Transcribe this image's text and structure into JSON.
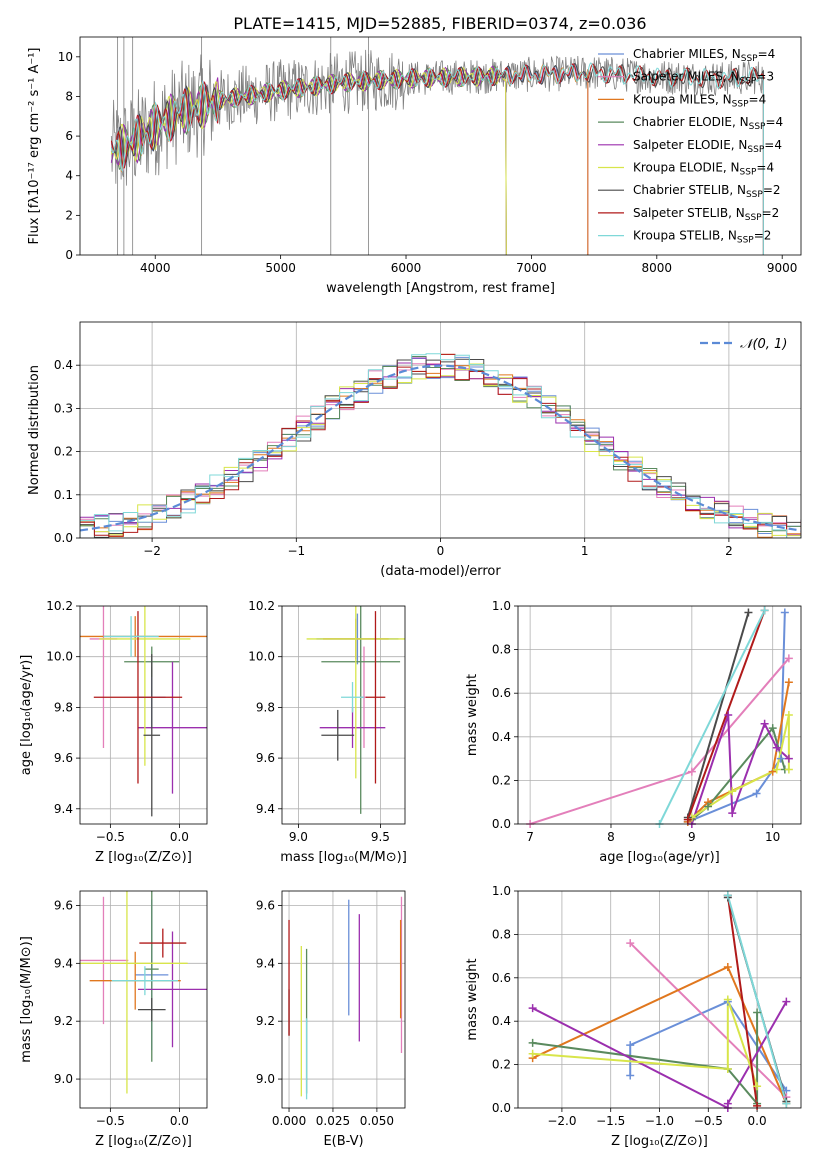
{
  "figure": {
    "title": "PLATE=1415, MJD=52885, FIBERID=0374, z=0.036"
  },
  "model_colors": {
    "Chabrier MILES": "#6a8fd8",
    "Salpeter MILES": "#e37fba",
    "Kroupa MILES": "#e0771e",
    "Chabrier ELODIE": "#5a8a5e",
    "Salpeter ELODIE": "#9b2fae",
    "Kroupa ELODIE": "#d8e54a",
    "Chabrier STELIB": "#4a4a4a",
    "Salpeter STELIB": "#b01a1a",
    "Kroupa STELIB": "#7fd8d8",
    "data": "#808080"
  },
  "chart_data": [
    {
      "id": "spectrum",
      "type": "line",
      "title": "",
      "xlabel": "wavelength [Angstrom, rest frame]",
      "ylabel": "Flux [fλ10⁻¹⁷ erg cm⁻² s⁻¹ A⁻¹]",
      "xlim": [
        3400,
        9150
      ],
      "ylim": [
        0,
        11
      ],
      "xticks": [
        4000,
        5000,
        6000,
        7000,
        8000,
        9000
      ],
      "yticks": [
        0,
        2,
        4,
        6,
        8,
        10
      ],
      "legend_position": "upper-right",
      "continuum_points": {
        "x": [
          3650,
          3800,
          4000,
          4200,
          4500,
          5000,
          5500,
          6000,
          6500,
          7000,
          7500,
          8000,
          8500,
          8850
        ],
        "y": [
          5.2,
          5.6,
          6.5,
          7.2,
          7.8,
          8.3,
          8.7,
          8.9,
          9.0,
          9.1,
          9.2,
          9.0,
          8.9,
          9.0
        ]
      },
      "series": [
        {
          "name": "Chabrier MILES, N_SSP=4",
          "x_end": 7450
        },
        {
          "name": "Salpeter MILES, N_SSP=3",
          "x_end": 7450
        },
        {
          "name": "Kroupa MILES, N_SSP=4",
          "x_end": 7450
        },
        {
          "name": "Chabrier ELODIE, N_SSP=4",
          "x_end": 6800
        },
        {
          "name": "Salpeter ELODIE, N_SSP=4",
          "x_end": 6800
        },
        {
          "name": "Kroupa ELODIE, N_SSP=4",
          "x_end": 6800
        },
        {
          "name": "Chabrier STELIB, N_SSP=2",
          "x_end": 8850
        },
        {
          "name": "Salpeter STELIB, N_SSP=2",
          "x_end": 8850
        },
        {
          "name": "Kroupa STELIB, N_SSP=2",
          "x_end": 8850
        }
      ],
      "legend_entries": [
        {
          "pre": "Chabrier MILES, N",
          "sub": "SSP",
          "post": "=4"
        },
        {
          "pre": "Salpeter MILES, N",
          "sub": "SSP",
          "post": "=3"
        },
        {
          "pre": "Kroupa MILES, N",
          "sub": "SSP",
          "post": "=4"
        },
        {
          "pre": "Chabrier ELODIE, N",
          "sub": "SSP",
          "post": "=4"
        },
        {
          "pre": "Salpeter ELODIE, N",
          "sub": "SSP",
          "post": "=4"
        },
        {
          "pre": "Kroupa ELODIE, N",
          "sub": "SSP",
          "post": "=4"
        },
        {
          "pre": "Chabrier STELIB, N",
          "sub": "SSP",
          "post": "=2"
        },
        {
          "pre": "Salpeter STELIB, N",
          "sub": "SSP",
          "post": "=2"
        },
        {
          "pre": "Kroupa STELIB, N",
          "sub": "SSP",
          "post": "=2"
        }
      ]
    },
    {
      "id": "residuals",
      "type": "line",
      "xlabel": "(data-model)/error",
      "ylabel": "Normed distribution",
      "xlim": [
        -2.5,
        2.5
      ],
      "ylim": [
        0,
        0.5
      ],
      "xticks": [
        -2,
        -1,
        0,
        1,
        2
      ],
      "yticks": [
        0.0,
        0.1,
        0.2,
        0.3,
        0.4
      ],
      "grid": true,
      "legend_position": "upper-right",
      "gaussian_label": "𝒩(0, 1)",
      "histogram_bin_width": 0.1
    },
    {
      "id": "age_vs_Z",
      "type": "scatter",
      "xlabel": "Z [log₁₀(Z/Z⊙)]",
      "ylabel": "age  [log₁₀(age/yr)]",
      "xlim": [
        -0.72,
        0.2
      ],
      "ylim": [
        9.34,
        10.2
      ],
      "xticks": [
        -0.5,
        0.0
      ],
      "yticks": [
        9.4,
        9.6,
        9.8,
        10.0,
        10.2
      ],
      "grid": true,
      "points": [
        {
          "model": "Chabrier MILES",
          "x": -0.2,
          "y": 9.84,
          "xerr": 0.1,
          "yerr": 0.12
        },
        {
          "model": "Salpeter MILES",
          "x": -0.55,
          "y": 10.07,
          "xerr": 0.1,
          "yerr": 0.43
        },
        {
          "model": "Kroupa MILES",
          "x": -0.32,
          "y": 10.08,
          "xerr": 0.52,
          "yerr": 0.08
        },
        {
          "model": "Chabrier ELODIE",
          "x": -0.2,
          "y": 9.98,
          "xerr": 0.2,
          "yerr": 0.06
        },
        {
          "model": "Salpeter ELODIE",
          "x": -0.05,
          "y": 9.72,
          "xerr": 0.25,
          "yerr": 0.26
        },
        {
          "model": "Kroupa ELODIE",
          "x": -0.25,
          "y": 10.07,
          "xerr": 0.33,
          "yerr": 0.5
        },
        {
          "model": "Chabrier STELIB",
          "x": -0.2,
          "y": 9.69,
          "xerr": 0.06,
          "yerr": 0.32
        },
        {
          "model": "Salpeter STELIB",
          "x": -0.3,
          "y": 9.84,
          "xerr": 0.32,
          "yerr": 0.34
        },
        {
          "model": "Kroupa STELIB",
          "x": -0.35,
          "y": 10.08,
          "xerr": 0.2,
          "yerr": 0.08
        }
      ]
    },
    {
      "id": "age_vs_mass",
      "type": "scatter",
      "xlabel": "mass [log₁₀(M/M⊙)]",
      "ylabel": "",
      "xlim": [
        8.9,
        9.65
      ],
      "ylim": [
        9.34,
        10.2
      ],
      "xticks": [
        9.0,
        9.5
      ],
      "yticks": [
        9.4,
        9.6,
        9.8,
        10.0,
        10.2
      ],
      "grid": true,
      "points": [
        {
          "model": "Chabrier MILES",
          "x": 9.36,
          "y": 10.07,
          "xerr": 0.25,
          "yerr": 0.1
        },
        {
          "model": "Salpeter MILES",
          "x": 9.4,
          "y": 9.84,
          "xerr": 0.02,
          "yerr": 0.2
        },
        {
          "model": "Kroupa MILES",
          "x": 9.35,
          "y": 10.07,
          "xerr": 0.2,
          "yerr": 0.08
        },
        {
          "model": "Chabrier ELODIE",
          "x": 9.38,
          "y": 9.98,
          "xerr": 0.24,
          "yerr": 0.6
        },
        {
          "model": "Salpeter ELODIE",
          "x": 9.33,
          "y": 9.72,
          "xerr": 0.2,
          "yerr": 0.08
        },
        {
          "model": "Kroupa ELODIE",
          "x": 9.35,
          "y": 10.07,
          "xerr": 0.3,
          "yerr": 0.55
        },
        {
          "model": "Chabrier STELIB",
          "x": 9.24,
          "y": 9.69,
          "xerr": 0.1,
          "yerr": 0.1
        },
        {
          "model": "Salpeter STELIB",
          "x": 9.47,
          "y": 9.84,
          "xerr": 0.06,
          "yerr": 0.34
        },
        {
          "model": "Kroupa STELIB",
          "x": 9.33,
          "y": 9.84,
          "xerr": 0.07,
          "yerr": 0.06
        }
      ]
    },
    {
      "id": "weight_vs_age",
      "type": "line",
      "xlabel": "age  [log₁₀(age/yr)]",
      "ylabel": "mass weight",
      "xlim": [
        6.85,
        10.35
      ],
      "ylim": [
        0,
        1
      ],
      "xticks": [
        7,
        8,
        9,
        10
      ],
      "yticks": [
        0.0,
        0.2,
        0.4,
        0.6,
        0.8,
        1.0
      ],
      "grid": true,
      "series": [
        {
          "model": "Chabrier MILES",
          "x": [
            8.95,
            9.8,
            10.1,
            10.15
          ],
          "y": [
            0.01,
            0.14,
            0.3,
            0.97
          ]
        },
        {
          "model": "Salpeter MILES",
          "x": [
            7.0,
            9.0,
            10.2
          ],
          "y": [
            0.0,
            0.24,
            0.76
          ]
        },
        {
          "model": "Kroupa MILES",
          "x": [
            8.95,
            9.2,
            10.0,
            10.2
          ],
          "y": [
            0.01,
            0.1,
            0.24,
            0.65
          ]
        },
        {
          "model": "Chabrier ELODIE",
          "x": [
            9.0,
            9.2,
            10.0,
            10.15
          ],
          "y": [
            0.02,
            0.08,
            0.44,
            0.25
          ]
        },
        {
          "model": "Salpeter ELODIE",
          "x": [
            9.0,
            9.45,
            9.5,
            9.9,
            10.05,
            10.2
          ],
          "y": [
            0.0,
            0.5,
            0.05,
            0.46,
            0.35,
            0.3
          ]
        },
        {
          "model": "Kroupa ELODIE",
          "x": [
            9.0,
            9.5,
            10.05,
            10.2,
            10.2
          ],
          "y": [
            0.03,
            0.15,
            0.25,
            0.5,
            0.25
          ]
        },
        {
          "model": "Chabrier STELIB",
          "x": [
            8.95,
            9.7
          ],
          "y": [
            0.03,
            0.97
          ]
        },
        {
          "model": "Salpeter STELIB",
          "x": [
            8.95,
            9.9
          ],
          "y": [
            0.02,
            0.98
          ]
        },
        {
          "model": "Kroupa STELIB",
          "x": [
            8.6,
            9.9
          ],
          "y": [
            0.0,
            0.98
          ]
        }
      ]
    },
    {
      "id": "mass_vs_Z",
      "type": "scatter",
      "xlabel": "Z [log₁₀(Z/Z⊙)]",
      "ylabel": "mass [log₁₀(M/M⊙)]",
      "xlim": [
        -0.72,
        0.2
      ],
      "ylim": [
        8.9,
        9.65
      ],
      "xticks": [
        -0.5,
        0.0
      ],
      "yticks": [
        9.0,
        9.2,
        9.4,
        9.6
      ],
      "grid": true,
      "points": [
        {
          "model": "Chabrier MILES",
          "x": -0.2,
          "y": 9.36,
          "xerr": 0.12,
          "yerr": 0.26
        },
        {
          "model": "Salpeter MILES",
          "x": -0.55,
          "y": 9.41,
          "xerr": 0.18,
          "yerr": 0.22
        },
        {
          "model": "Kroupa MILES",
          "x": -0.32,
          "y": 9.34,
          "xerr": 0.33,
          "yerr": 0.1
        },
        {
          "model": "Chabrier ELODIE",
          "x": -0.2,
          "y": 9.38,
          "xerr": 0.05,
          "yerr": 0.32
        },
        {
          "model": "Salpeter ELODIE",
          "x": -0.05,
          "y": 9.31,
          "xerr": 0.25,
          "yerr": 0.2
        },
        {
          "model": "Kroupa ELODIE",
          "x": -0.38,
          "y": 9.4,
          "xerr": 0.44,
          "yerr": 0.45
        },
        {
          "model": "Chabrier STELIB",
          "x": -0.2,
          "y": 9.24,
          "xerr": 0.1,
          "yerr": 0.04
        },
        {
          "model": "Salpeter STELIB",
          "x": -0.12,
          "y": 9.47,
          "xerr": 0.17,
          "yerr": 0.05
        },
        {
          "model": "Kroupa STELIB",
          "x": -0.25,
          "y": 9.34,
          "xerr": 0.24,
          "yerr": 0.05
        }
      ]
    },
    {
      "id": "mass_vs_ebv",
      "type": "scatter",
      "xlabel": "E(B-V)",
      "ylabel": "",
      "xlim": [
        -0.004,
        0.066
      ],
      "ylim": [
        8.9,
        9.65
      ],
      "xticks": [
        0.0,
        0.025,
        0.05
      ],
      "yticks": [
        9.0,
        9.2,
        9.4,
        9.6
      ],
      "grid": true,
      "points": [
        {
          "model": "Chabrier MILES",
          "x": 0.034,
          "y": 9.42,
          "yerr": 0.2
        },
        {
          "model": "Salpeter MILES",
          "x": 0.064,
          "y": 9.36,
          "yerr": 0.27
        },
        {
          "model": "Kroupa MILES",
          "x": 0.0635,
          "y": 9.38,
          "yerr": 0.17
        },
        {
          "model": "Chabrier ELODIE",
          "x": 0.01,
          "y": 9.2,
          "yerr": 0.25
        },
        {
          "model": "Salpeter ELODIE",
          "x": 0.04,
          "y": 9.35,
          "yerr": 0.22
        },
        {
          "model": "Kroupa ELODIE",
          "x": 0.007,
          "y": 9.2,
          "yerr": 0.26
        },
        {
          "model": "Chabrier STELIB",
          "x": 0.0,
          "y": 9.23,
          "yerr": 0.08
        },
        {
          "model": "Salpeter STELIB",
          "x": 0.0,
          "y": 9.35,
          "yerr": 0.2
        },
        {
          "model": "Kroupa STELIB",
          "x": 0.01,
          "y": 9.07,
          "yerr": 0.14
        }
      ]
    },
    {
      "id": "weight_vs_Z",
      "type": "line",
      "xlabel": "Z [log₁₀(Z/Z⊙)]",
      "ylabel": "mass weight",
      "xlim": [
        -2.45,
        0.45
      ],
      "ylim": [
        0,
        1
      ],
      "xticks": [
        -2.0,
        -1.5,
        -1.0,
        -0.5,
        0.0
      ],
      "yticks": [
        0.0,
        0.2,
        0.4,
        0.6,
        0.8,
        1.0
      ],
      "grid": true,
      "series": [
        {
          "model": "Chabrier MILES",
          "x": [
            -1.3,
            -1.3,
            -0.3,
            0.3
          ],
          "y": [
            0.15,
            0.29,
            0.49,
            0.08
          ]
        },
        {
          "model": "Salpeter MILES",
          "x": [
            -1.3,
            0.3
          ],
          "y": [
            0.76,
            0.05
          ]
        },
        {
          "model": "Kroupa MILES",
          "x": [
            -2.3,
            -0.3,
            0.3
          ],
          "y": [
            0.23,
            0.65,
            0.02
          ]
        },
        {
          "model": "Chabrier ELODIE",
          "x": [
            -2.3,
            -0.3,
            0.0,
            0.0
          ],
          "y": [
            0.3,
            0.18,
            0.02,
            0.44
          ]
        },
        {
          "model": "Salpeter ELODIE",
          "x": [
            -2.3,
            -0.3,
            -0.3,
            0.3
          ],
          "y": [
            0.46,
            0.0,
            0.02,
            0.49
          ]
        },
        {
          "model": "Kroupa ELODIE",
          "x": [
            -2.3,
            -0.3,
            -0.3,
            0.0
          ],
          "y": [
            0.25,
            0.18,
            0.5,
            0.1
          ]
        },
        {
          "model": "Chabrier STELIB",
          "x": [
            -0.3,
            0.3
          ],
          "y": [
            0.97,
            0.03
          ]
        },
        {
          "model": "Salpeter STELIB",
          "x": [
            -0.3,
            0.0
          ],
          "y": [
            0.98,
            0.01
          ]
        },
        {
          "model": "Kroupa STELIB",
          "x": [
            -0.3,
            0.3
          ],
          "y": [
            0.98,
            0.02
          ]
        }
      ]
    }
  ]
}
